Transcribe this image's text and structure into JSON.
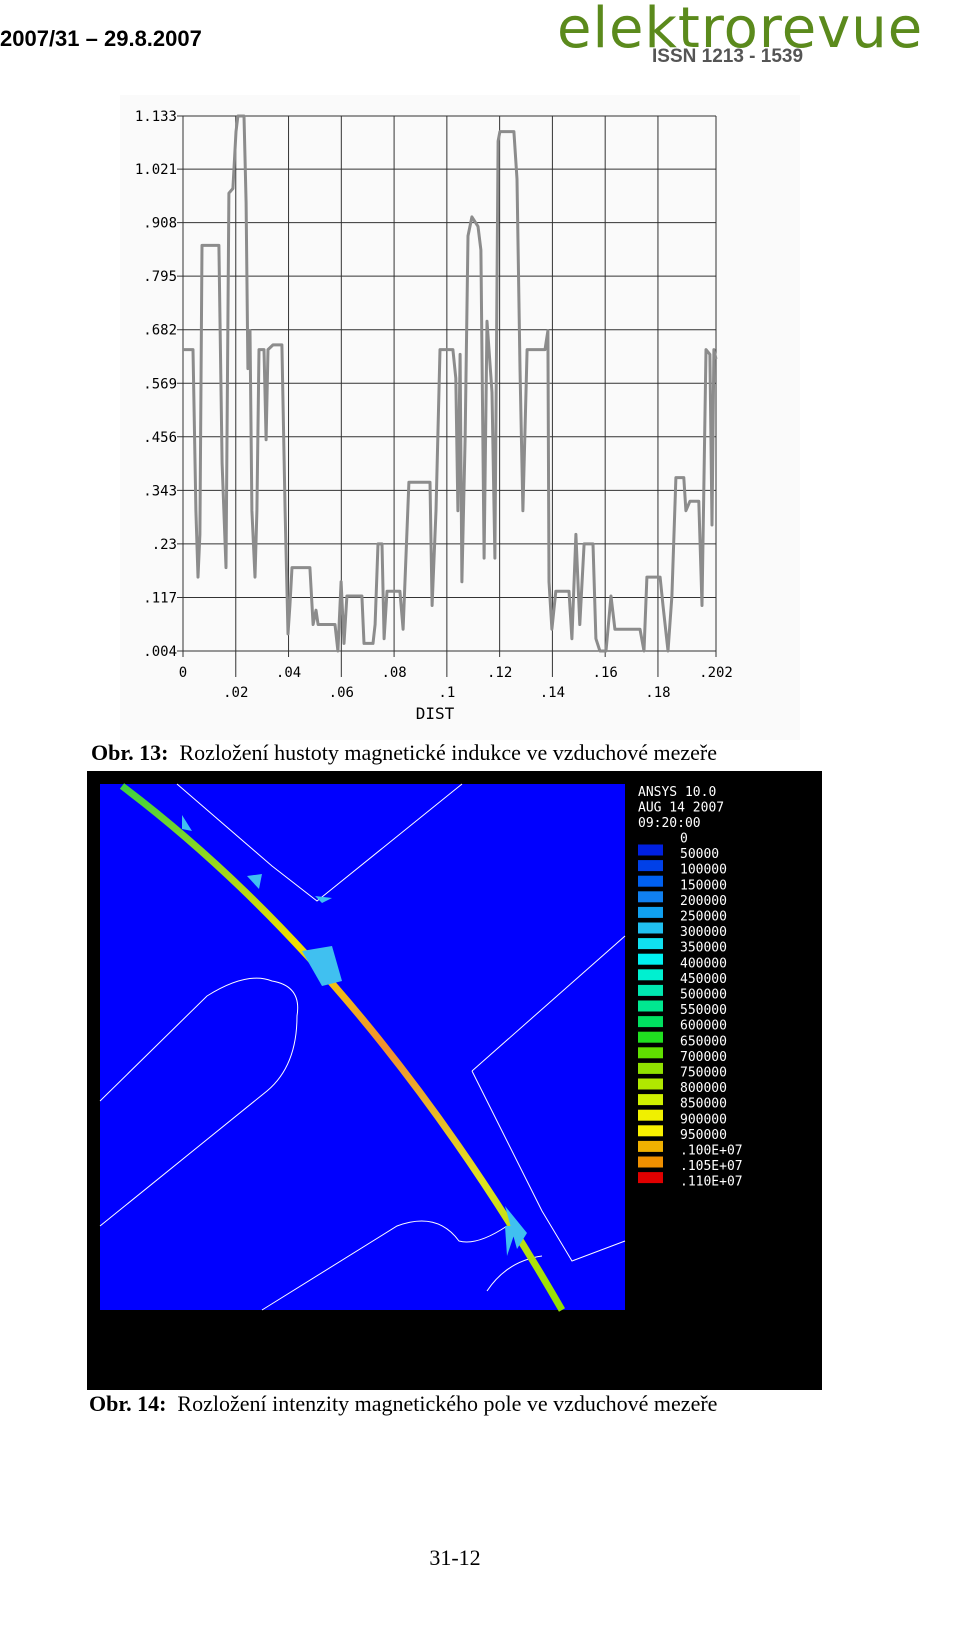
{
  "header": {
    "issue": "2007/31 – 29.8.2007",
    "logo": "elektrorevue",
    "issn": "ISSN 1213 - 1539"
  },
  "chart_data": {
    "type": "line",
    "xlabel": "DIST",
    "color": "#8c8c8c",
    "grid": true,
    "xlim": [
      0,
      0.202
    ],
    "ylim": [
      0.004,
      1.133
    ],
    "xticks": [
      0,
      {
        "value": 0.02,
        "label": ".02"
      },
      {
        "value": 0.04,
        "label": ".04"
      },
      {
        "value": 0.06,
        "label": ".06"
      },
      {
        "value": 0.08,
        "label": ".08"
      },
      {
        "value": 0.1,
        "label": ".1"
      },
      {
        "value": 0.12,
        "label": ".12"
      },
      {
        "value": 0.14,
        "label": ".14"
      },
      {
        "value": 0.16,
        "label": ".16"
      },
      {
        "value": 0.18,
        "label": ".18"
      },
      {
        "value": 0.202,
        "label": ".202"
      }
    ],
    "yticks": [
      {
        "value": 0.004,
        "label": ".004"
      },
      {
        "value": 0.117,
        "label": ".117"
      },
      {
        "value": 0.23,
        "label": ".23"
      },
      {
        "value": 0.343,
        "label": ".343"
      },
      {
        "value": 0.456,
        "label": ".456"
      },
      {
        "value": 0.569,
        "label": ".569"
      },
      {
        "value": 0.682,
        "label": ".682"
      },
      {
        "value": 0.795,
        "label": ".795"
      },
      {
        "value": 0.908,
        "label": ".908"
      },
      1.021,
      1.133
    ],
    "x": [
      0,
      0.0038,
      0.0049,
      0.0057,
      0.0064,
      0.0072,
      0.0136,
      0.0148,
      0.0163,
      0.0174,
      0.0189,
      0.0201,
      0.0208,
      0.0231,
      0.0239,
      0.0246,
      0.0254,
      0.0261,
      0.0273,
      0.028,
      0.0288,
      0.0307,
      0.0315,
      0.0322,
      0.0341,
      0.0375,
      0.0387,
      0.0398,
      0.0405,
      0.0413,
      0.0481,
      0.0493,
      0.0504,
      0.0512,
      0.0576,
      0.0587,
      0.0599,
      0.061,
      0.0621,
      0.0678,
      0.0686,
      0.072,
      0.0728,
      0.0739,
      0.0754,
      0.0762,
      0.0773,
      0.0822,
      0.0834,
      0.0856,
      0.0936,
      0.0944,
      0.0959,
      0.0974,
      0.1023,
      0.1034,
      0.1042,
      0.105,
      0.1057,
      0.1069,
      0.108,
      0.1095,
      0.1118,
      0.1129,
      0.1141,
      0.1152,
      0.1171,
      0.1182,
      0.1194,
      0.1201,
      0.1254,
      0.1266,
      0.1277,
      0.1288,
      0.1304,
      0.1372,
      0.1383,
      0.1387,
      0.1398,
      0.1413,
      0.1463,
      0.1474,
      0.1489,
      0.1504,
      0.152,
      0.1554,
      0.1565,
      0.158,
      0.1603,
      0.1622,
      0.1637,
      0.1732,
      0.1747,
      0.1758,
      0.1808,
      0.1819,
      0.1838,
      0.1853,
      0.1868,
      0.1898,
      0.1906,
      0.1921,
      0.1955,
      0.1967,
      0.1982,
      0.1997,
      0.2005,
      0.2012,
      0.202
    ],
    "values": [
      0.64,
      0.64,
      0.3,
      0.16,
      0.25,
      0.86,
      0.86,
      0.4,
      0.18,
      0.97,
      0.98,
      1.1,
      1.133,
      1.133,
      0.95,
      0.6,
      0.68,
      0.3,
      0.16,
      0.3,
      0.64,
      0.64,
      0.45,
      0.64,
      0.65,
      0.65,
      0.3,
      0.04,
      0.1,
      0.18,
      0.18,
      0.06,
      0.09,
      0.06,
      0.06,
      0.004,
      0.15,
      0.02,
      0.12,
      0.12,
      0.02,
      0.02,
      0.06,
      0.23,
      0.23,
      0.03,
      0.13,
      0.13,
      0.05,
      0.36,
      0.36,
      0.1,
      0.3,
      0.64,
      0.64,
      0.58,
      0.3,
      0.63,
      0.15,
      0.45,
      0.88,
      0.92,
      0.9,
      0.85,
      0.2,
      0.7,
      0.55,
      0.2,
      1.08,
      1.1,
      1.1,
      1.0,
      0.6,
      0.3,
      0.64,
      0.64,
      0.68,
      0.15,
      0.05,
      0.13,
      0.13,
      0.03,
      0.25,
      0.06,
      0.23,
      0.23,
      0.03,
      0.004,
      0.004,
      0.12,
      0.05,
      0.05,
      0.004,
      0.16,
      0.16,
      0.1,
      0.004,
      0.12,
      0.37,
      0.37,
      0.3,
      0.32,
      0.32,
      0.1,
      0.64,
      0.63,
      0.27,
      0.64,
      0.62
    ]
  },
  "figure13": {
    "label": "Obr. 13:",
    "caption": "Rozložení hustoty magnetické indukce ve vzduchové mezeře"
  },
  "figure14": {
    "label": "Obr. 14:",
    "caption": "Rozložení intenzity magnetického pole ve vzduchové mezeře",
    "info": [
      "ANSYS 10.0",
      "AUG 14 2007",
      "09:20:00"
    ],
    "legend": {
      "labels": [
        "0",
        "50000",
        "100000",
        "150000",
        "200000",
        "250000",
        "300000",
        "350000",
        "400000",
        "450000",
        "500000",
        "550000",
        "600000",
        "650000",
        "700000",
        "750000",
        "800000",
        "850000",
        "900000",
        "950000",
        ".100E+07",
        ".105E+07",
        ".110E+07"
      ],
      "colors": [
        "#0020e0",
        "#0040e8",
        "#0060f0",
        "#1080f0",
        "#10a0f0",
        "#20c0f0",
        "#10e0f0",
        "#00f0f0",
        "#00f0d0",
        "#00e8b0",
        "#00e890",
        "#00e060",
        "#20e020",
        "#60e000",
        "#90e000",
        "#b0e800",
        "#d0f000",
        "#f0f000",
        "#f8f000",
        "#f0b000",
        "#f09000",
        "#e00000"
      ]
    }
  },
  "footer": {
    "page": "31-12"
  }
}
